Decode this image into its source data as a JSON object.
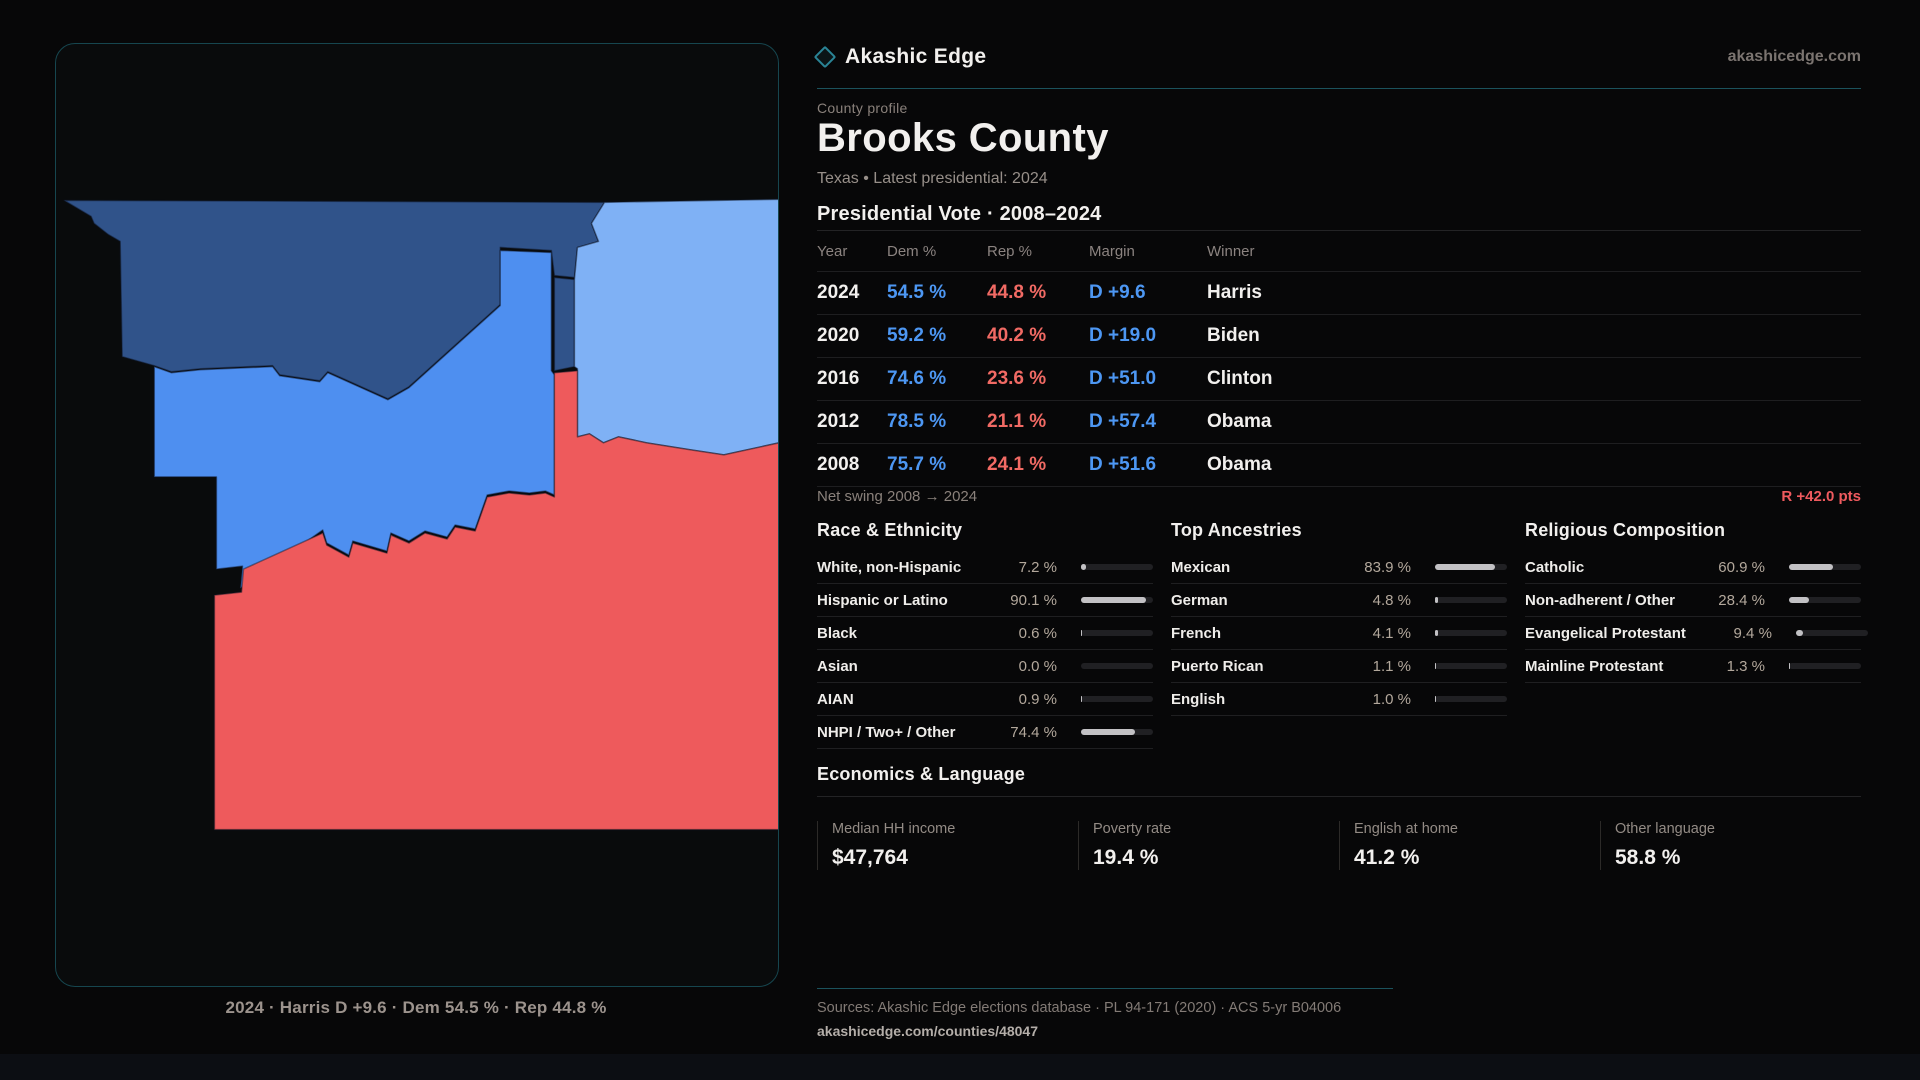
{
  "theme": {
    "bg": "#070708",
    "panel_border": "#16464f",
    "accent": "#2a8496",
    "teal_line": "#1b525c",
    "text": "#f2f0ee",
    "value": "#b3a89c",
    "dem": "#4d97f3",
    "rep": "#f16a64",
    "swing_rep": "#ef5a5e",
    "bar_track": "#202023",
    "bar_fill": "#c2c1c4",
    "map_navy": "#30538a",
    "map_blue": "#4e8ff0",
    "map_light_blue": "#7fb1f5",
    "map_red": "#ee5a5c"
  },
  "brand": {
    "name": "Akashic Edge",
    "domain": "akashicedge.com"
  },
  "profile": {
    "kicker": "County profile",
    "title": "Brooks County",
    "subtitle": "Texas • Latest presidential: 2024"
  },
  "election": {
    "title": "Presidential Vote · 2008–2024",
    "columns": {
      "year": "Year",
      "dem": "Dem %",
      "rep": "Rep %",
      "margin": "Margin",
      "winner": "Winner"
    },
    "rows": [
      {
        "year": "2024",
        "dem": "54.5 %",
        "rep": "44.8 %",
        "margin": "D +9.6",
        "winner": "Harris"
      },
      {
        "year": "2020",
        "dem": "59.2 %",
        "rep": "40.2 %",
        "margin": "D +19.0",
        "winner": "Biden"
      },
      {
        "year": "2016",
        "dem": "74.6 %",
        "rep": "23.6 %",
        "margin": "D +51.0",
        "winner": "Clinton"
      },
      {
        "year": "2012",
        "dem": "78.5 %",
        "rep": "21.1 %",
        "margin": "D +57.4",
        "winner": "Obama"
      },
      {
        "year": "2008",
        "dem": "75.7 %",
        "rep": "24.1 %",
        "margin": "D +51.6",
        "winner": "Obama"
      }
    ]
  },
  "swing": {
    "label": "Net swing 2008 → 2024",
    "value": "R +42.0 pts"
  },
  "demographics": [
    {
      "title": "Race & Ethnicity",
      "rows": [
        {
          "label": "White, non-Hispanic",
          "value": "7.2 %",
          "pct": 7.2
        },
        {
          "label": "Hispanic or Latino",
          "value": "90.1 %",
          "pct": 90.1
        },
        {
          "label": "Black",
          "value": "0.6 %",
          "pct": 0.6
        },
        {
          "label": "Asian",
          "value": "0.0 %",
          "pct": 0
        },
        {
          "label": "AIAN",
          "value": "0.9 %",
          "pct": 0.9
        },
        {
          "label": "NHPI / Two+ / Other",
          "value": "74.4 %",
          "pct": 74.4
        }
      ]
    },
    {
      "title": "Top Ancestries",
      "rows": [
        {
          "label": "Mexican",
          "value": "83.9 %",
          "pct": 83.9
        },
        {
          "label": "German",
          "value": "4.8 %",
          "pct": 4.8
        },
        {
          "label": "French",
          "value": "4.1 %",
          "pct": 4.1
        },
        {
          "label": "Puerto Rican",
          "value": "1.1 %",
          "pct": 1.1
        },
        {
          "label": "English",
          "value": "1.0 %",
          "pct": 1.0
        }
      ]
    },
    {
      "title": "Religious Composition",
      "rows": [
        {
          "label": "Catholic",
          "value": "60.9 %",
          "pct": 60.9
        },
        {
          "label": "Non-adherent / Other",
          "value": "28.4 %",
          "pct": 28.4
        },
        {
          "label": "Evangelical Protestant",
          "value": "9.4 %",
          "pct": 9.4
        },
        {
          "label": "Mainline Protestant",
          "value": "1.3 %",
          "pct": 1.3
        }
      ]
    }
  ],
  "economics": {
    "title": "Economics & Language",
    "stats": [
      {
        "label": "Median HH income",
        "value": "$47,764"
      },
      {
        "label": "Poverty rate",
        "value": "19.4 %"
      },
      {
        "label": "English at home",
        "value": "41.2 %"
      },
      {
        "label": "Other language",
        "value": "58.8 %"
      }
    ]
  },
  "map": {
    "caption": "2024 · Harris D +9.6 · Dem 54.5 % · Rep 44.8 %"
  },
  "footer": {
    "sources": "Sources: Akashic Edge elections database · PL 94-171 (2020) · ACS 5-yr B04006",
    "link": "akashicedge.com/counties/48047"
  }
}
